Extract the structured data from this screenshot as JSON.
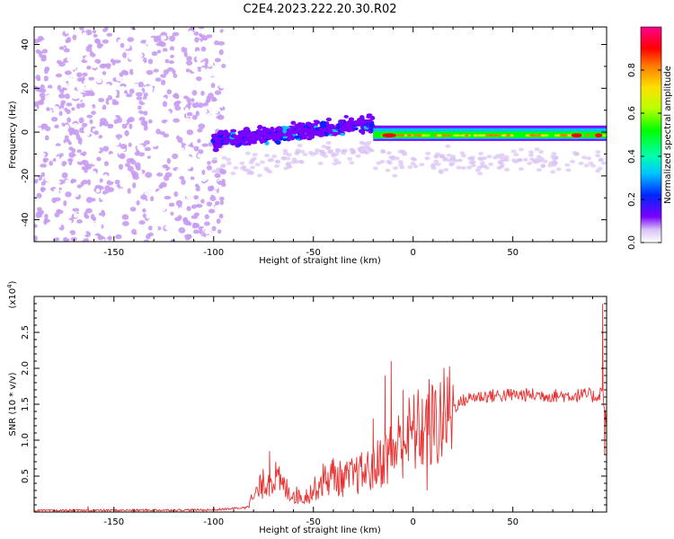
{
  "title": "C2E4.2023.222.20.30.R02",
  "chart_data": [
    {
      "type": "heatmap",
      "xlabel": "Height of straight line (km)",
      "ylabel": "Frequency (Hz)",
      "xlim": [
        -190,
        97
      ],
      "ylim": [
        -50,
        48
      ],
      "x_ticks": [
        -150,
        -100,
        -50,
        0,
        50
      ],
      "y_ticks": [
        -40,
        -20,
        0,
        20,
        40
      ],
      "colorbar": {
        "label": "Normalized spectral amplitude",
        "range": [
          0,
          1
        ],
        "ticks": [
          0.0,
          0.2,
          0.4,
          0.6,
          0.8
        ],
        "colors": [
          "#ffffff",
          "#c79cf2",
          "#7a00ff",
          "#0026ff",
          "#00c4ff",
          "#00ffb0",
          "#00ff00",
          "#b8ff00",
          "#ffe000",
          "#ff7a00",
          "#ff0000",
          "#ff00a0"
        ]
      },
      "features": [
        {
          "description": "scattered weak speckle",
          "x_range": [
            -190,
            -95
          ],
          "freq_range": [
            -50,
            48
          ],
          "amplitude": 0.1
        },
        {
          "description": "speckled band",
          "x_range": [
            -100,
            -20
          ],
          "freq_range": [
            -10,
            10
          ],
          "amplitude": 0.2
        },
        {
          "description": "narrow strong line",
          "x_range": [
            -20,
            97
          ],
          "freq_range": [
            -4,
            3
          ],
          "center_freq": -1.5,
          "peak_amplitude": 0.95
        }
      ]
    },
    {
      "type": "line",
      "xlabel": "Height of straight line (km)",
      "ylabel": "SNR (10 * v/v)",
      "multiplier": "(x10",
      "multiplier_exp": "4",
      "multiplier_close": ")",
      "xlim": [
        -190,
        97
      ],
      "ylim": [
        0,
        3.0
      ],
      "x_ticks": [
        -150,
        -100,
        -50,
        0,
        50
      ],
      "y_ticks": [
        0.5,
        1.0,
        1.5,
        2.0,
        2.5
      ],
      "y_tick_labels": [
        "0.5",
        "1.0",
        "1.5",
        "2.0",
        "2.5"
      ],
      "color": "#e83030",
      "envelope_x": [
        -190,
        -100,
        -85,
        -80,
        -75,
        -70,
        -65,
        -60,
        -55,
        -50,
        -45,
        -40,
        -35,
        -30,
        -25,
        -20,
        -15,
        -10,
        -5,
        0,
        5,
        10,
        15,
        20,
        25,
        30,
        40,
        50,
        60,
        70,
        80,
        88,
        92,
        95,
        97
      ],
      "envelope_y": [
        0.02,
        0.03,
        0.06,
        0.2,
        0.4,
        0.5,
        0.35,
        0.25,
        0.2,
        0.3,
        0.45,
        0.5,
        0.45,
        0.5,
        0.55,
        0.6,
        0.75,
        0.85,
        1.0,
        1.1,
        1.15,
        1.2,
        1.3,
        1.45,
        1.55,
        1.6,
        1.62,
        1.63,
        1.63,
        1.62,
        1.62,
        1.63,
        1.6,
        1.7,
        1.2
      ],
      "spikes": [
        [
          -163,
          0.08
        ],
        [
          -72,
          0.85
        ],
        [
          -40,
          0.75
        ],
        [
          -20,
          1.3
        ],
        [
          -14,
          1.9
        ],
        [
          -11,
          2.1
        ],
        [
          -5,
          1.7
        ],
        [
          7,
          0.3
        ],
        [
          8,
          1.85
        ],
        [
          15,
          1.4
        ],
        [
          95,
          2.9
        ],
        [
          96,
          0.8
        ]
      ]
    }
  ]
}
